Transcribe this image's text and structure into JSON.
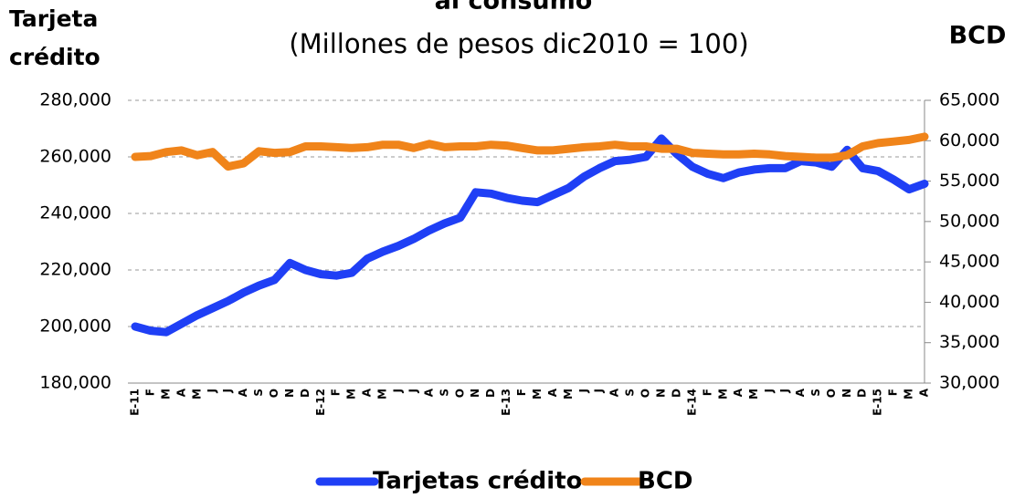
{
  "chart_data": {
    "type": "line",
    "title": "al consumo",
    "subtitle": "(Millones de pesos dic2010 = 100)",
    "y_label": "Tarjeta crédito",
    "y2_label": "BCD",
    "categories": [
      "E-11",
      "F",
      "M",
      "A",
      "M",
      "J",
      "J",
      "A",
      "S",
      "O",
      "N",
      "D",
      "E-12",
      "F",
      "M",
      "A",
      "M",
      "J",
      "J",
      "A",
      "S",
      "O",
      "N",
      "D",
      "E-13",
      "F",
      "M",
      "A",
      "M",
      "J",
      "J",
      "A",
      "S",
      "O",
      "N",
      "D",
      "E-14",
      "F",
      "M",
      "A",
      "M",
      "J",
      "J",
      "A",
      "S",
      "O",
      "N",
      "D",
      "E-15",
      "F",
      "M",
      "A"
    ],
    "series": [
      {
        "name": "Tarjetas crédito",
        "color": "#1f3ff5",
        "values": [
          200000,
          198500,
          198000,
          201000,
          204000,
          206500,
          209000,
          212000,
          214500,
          216500,
          222500,
          220000,
          218500,
          218000,
          219000,
          224000,
          226500,
          228500,
          231000,
          234000,
          236500,
          238500,
          247500,
          247000,
          245500,
          244500,
          244000,
          246500,
          249000,
          253000,
          256000,
          258500,
          259000,
          260000,
          266500,
          261000,
          256500,
          254000,
          252500,
          254500,
          255500,
          256000,
          256000,
          258500,
          258000,
          256500,
          262500,
          256000,
          255000,
          252000,
          248500,
          250500
        ]
      },
      {
        "name": "BCD",
        "color": "#f0841a",
        "axis": "y2",
        "values": [
          58000,
          58100,
          58600,
          58800,
          58200,
          58600,
          56800,
          57200,
          58700,
          58500,
          58600,
          59300,
          59300,
          59200,
          59100,
          59200,
          59500,
          59500,
          59100,
          59600,
          59200,
          59300,
          59300,
          59500,
          59400,
          59100,
          58800,
          58800,
          59000,
          59200,
          59300,
          59500,
          59300,
          59300,
          59000,
          59000,
          58500,
          58400,
          58300,
          58300,
          58400,
          58300,
          58100,
          58000,
          57900,
          57900,
          58200,
          59300,
          59700,
          59900,
          60100,
          60500
        ]
      }
    ],
    "ylim": [
      180000,
      280000
    ],
    "yticks": [
      {
        "value": 180000,
        "label": "180,000"
      },
      {
        "value": 200000,
        "label": "200,000"
      },
      {
        "value": 220000,
        "label": "220,000"
      },
      {
        "value": 240000,
        "label": "240,000"
      },
      {
        "value": 260000,
        "label": "260,000"
      },
      {
        "value": 280000,
        "label": "280,000"
      }
    ],
    "y2lim": [
      30000,
      65000
    ],
    "y2ticks": [
      {
        "value": 30000,
        "label": "30,000"
      },
      {
        "value": 35000,
        "label": "35,000"
      },
      {
        "value": 40000,
        "label": "40,000"
      },
      {
        "value": 45000,
        "label": "45,000"
      },
      {
        "value": 50000,
        "label": "50,000"
      },
      {
        "value": 55000,
        "label": "55,000"
      },
      {
        "value": 60000,
        "label": "60,000"
      },
      {
        "value": 65000,
        "label": "65,000"
      }
    ],
    "grid": true,
    "legend": "bottom"
  }
}
